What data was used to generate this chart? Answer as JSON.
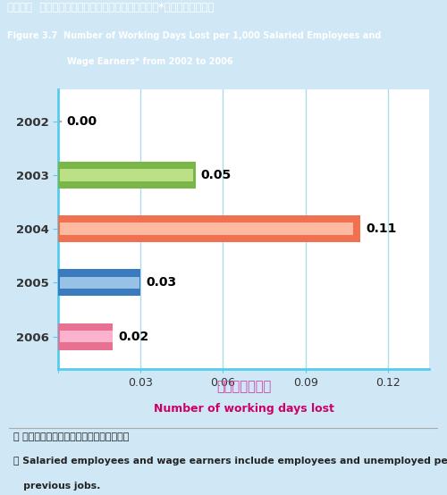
{
  "title_chinese": "圖三．七  二零零二年至二零零六年每一千名受薪僱員*所損失的工作日數",
  "title_english_line1": "Figure 3.7  Number of Working Days Lost per 1,000 Salaried Employees and",
  "title_english_line2": "Wage Earners* from 2002 to 2006",
  "years": [
    "2002",
    "2003",
    "2004",
    "2005",
    "2006"
  ],
  "values": [
    0.0,
    0.05,
    0.11,
    0.03,
    0.02
  ],
  "bar_colors_outer": [
    "#aaaaaa",
    "#7ab648",
    "#f07050",
    "#3a7abf",
    "#e87090"
  ],
  "bar_colors_inner": [
    "#eeeeee",
    "#c8e890",
    "#ffc8b0",
    "#a8d0ee",
    "#ffc0d8"
  ],
  "xlabel_chinese": "損失的工作日數",
  "xlabel_english": "Number of working days lost",
  "xlim": [
    0,
    0.135
  ],
  "xticks": [
    0.0,
    0.03,
    0.06,
    0.09,
    0.12
  ],
  "xtick_labels": [
    "",
    "0.03",
    "0.06",
    "0.09",
    "0.12"
  ],
  "footnote_chinese": "＊ 受薪僱員包括僱員及曾受僱的失業人士。",
  "footnote_english_line1": "＊ Salaried employees and wage earners include employees and unemployed persons having",
  "footnote_english_line2": "   previous jobs.",
  "title_bg_color": "#45bcd8",
  "plot_bg_color": "#ffffff",
  "outer_bg_color": "#d0e8f5",
  "spine_color": "#55ccee",
  "grid_color": "#aaddee",
  "bar_height": 0.5,
  "value_fontsize": 10,
  "year_fontsize": 9.5,
  "xlabel_color_chinese": "#cc44aa",
  "xlabel_color_english": "#cc0066"
}
